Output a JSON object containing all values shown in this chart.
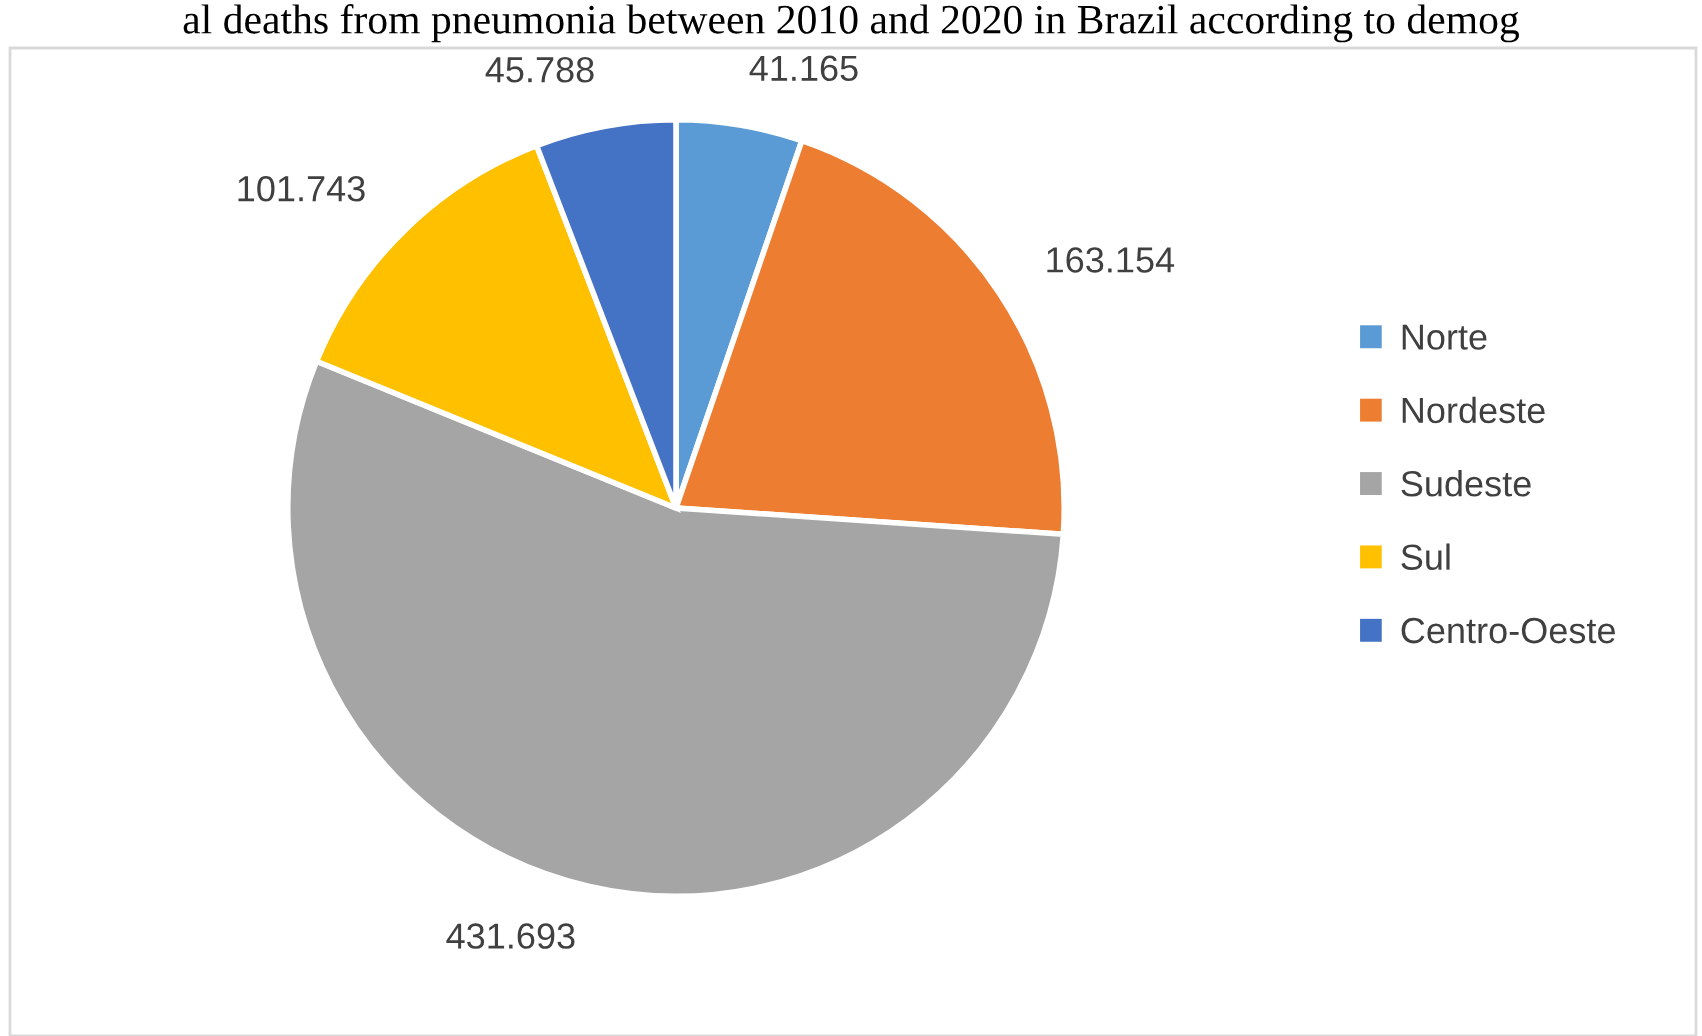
{
  "chart_data": {
    "type": "pie",
    "title": "al deaths from pneumonia between 2010 and 2020 in Brazil according to demog",
    "categories": [
      "Norte",
      "Nordeste",
      "Sudeste",
      "Sul",
      "Centro-Oeste"
    ],
    "values": [
      41165,
      163154,
      431693,
      101743,
      45788
    ],
    "value_labels": [
      "41.165",
      "163.154",
      "431.693",
      "101.743",
      "45.788"
    ],
    "colors": [
      "#5b9bd5",
      "#ed7d31",
      "#a5a5a5",
      "#ffc000",
      "#4472c4"
    ],
    "legend": "right"
  }
}
